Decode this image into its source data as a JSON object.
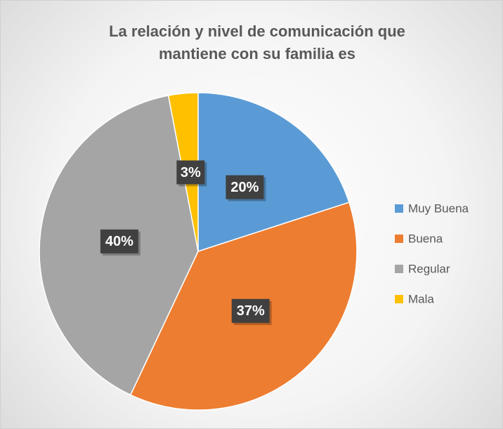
{
  "chart_data": {
    "type": "pie",
    "title": "La relación y nivel de comunicación que mantiene con su familia es",
    "categories": [
      "Muy Buena",
      "Buena",
      "Regular",
      "Mala"
    ],
    "values": [
      20,
      37,
      40,
      3
    ],
    "value_labels": [
      "20%",
      "37%",
      "40%",
      "3%"
    ],
    "colors": [
      "#5b9bd5",
      "#ed7d31",
      "#a5a5a5",
      "#ffc000"
    ],
    "legend": "right"
  }
}
